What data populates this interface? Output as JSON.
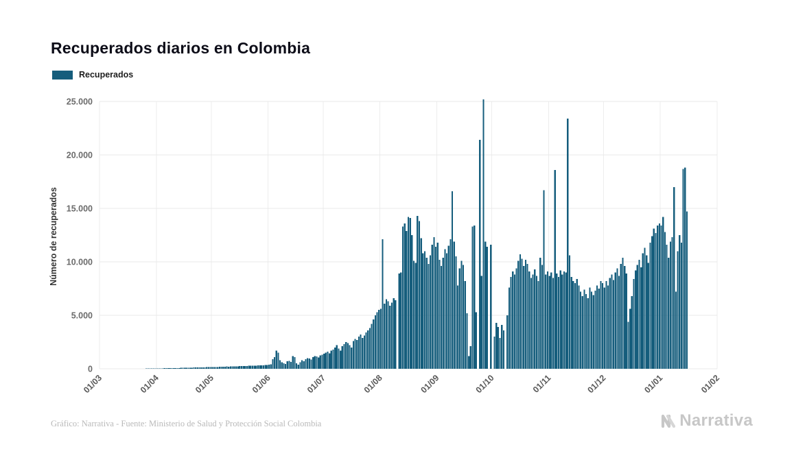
{
  "header": {
    "title": "Recuperados diarios en Colombia"
  },
  "legend": {
    "series_label": "Recuperados"
  },
  "footer": {
    "credit": "Gráfico: Narrativa - Fuente: Ministerio de Salud y Protección Social Colombia",
    "brand": "Narrativa"
  },
  "chart_data": {
    "type": "bar",
    "title": "Recuperados diarios en Colombia",
    "series_name": "Recuperados",
    "xlabel": "",
    "ylabel": "Número de recuperados",
    "ylim": [
      0,
      25000
    ],
    "grid": "horizontal-and-vertical-light",
    "legend_position": "top-left",
    "frequency": "daily",
    "start_date": "01/03",
    "total_days": 337,
    "colors": {
      "bar": "#155d7c",
      "grid": "#e8e8e8",
      "grid_vertical": "#ededed",
      "tick_text": "#6b6b6b"
    },
    "y_ticks": [
      {
        "value": 0,
        "label": "0"
      },
      {
        "value": 5000,
        "label": "5.000"
      },
      {
        "value": 10000,
        "label": "10.000"
      },
      {
        "value": 15000,
        "label": "15.000"
      },
      {
        "value": 20000,
        "label": "20.000"
      },
      {
        "value": 25000,
        "label": "25.000"
      }
    ],
    "x_ticks": [
      {
        "label": "01/03",
        "day": 0
      },
      {
        "label": "01/04",
        "day": 31
      },
      {
        "label": "01/05",
        "day": 61
      },
      {
        "label": "01/06",
        "day": 92
      },
      {
        "label": "01/07",
        "day": 122
      },
      {
        "label": "01/08",
        "day": 153
      },
      {
        "label": "01/09",
        "day": 184
      },
      {
        "label": "01/10",
        "day": 214
      },
      {
        "label": "01/11",
        "day": 245
      },
      {
        "label": "01/12",
        "day": 275
      },
      {
        "label": "01/01",
        "day": 306
      },
      {
        "label": "01/02",
        "day": 337
      }
    ],
    "values": [
      0,
      0,
      0,
      0,
      0,
      0,
      0,
      1,
      1,
      0,
      2,
      1,
      3,
      2,
      4,
      3,
      5,
      6,
      4,
      8,
      10,
      9,
      12,
      15,
      14,
      18,
      20,
      22,
      25,
      28,
      30,
      35,
      40,
      45,
      42,
      50,
      55,
      60,
      52,
      65,
      70,
      75,
      68,
      80,
      85,
      90,
      95,
      88,
      100,
      110,
      105,
      115,
      120,
      125,
      118,
      130,
      140,
      135,
      145,
      150,
      148,
      155,
      160,
      170,
      165,
      180,
      190,
      185,
      200,
      210,
      205,
      220,
      215,
      230,
      240,
      235,
      250,
      245,
      260,
      270,
      265,
      280,
      275,
      290,
      300,
      295,
      310,
      305,
      320,
      330,
      340,
      350,
      380,
      420,
      900,
      1100,
      1700,
      1500,
      800,
      600,
      500,
      450,
      700,
      750,
      650,
      1200,
      1100,
      500,
      400,
      600,
      800,
      700,
      900,
      1000,
      950,
      850,
      1100,
      1200,
      1150,
      1050,
      1250,
      1300,
      1400,
      1500,
      1600,
      1450,
      1700,
      1800,
      2000,
      2200,
      1900,
      1700,
      2100,
      2300,
      2500,
      2400,
      2200,
      2000,
      2600,
      2800,
      2700,
      3000,
      3200,
      2900,
      3100,
      3400,
      3600,
      3800,
      4200,
      4600,
      5000,
      5300,
      5500,
      5600,
      12100,
      6100,
      6500,
      6300,
      5900,
      6200,
      6600,
      6400,
      0,
      8900,
      9000,
      13300,
      13600,
      12900,
      14200,
      14100,
      12500,
      10100,
      9900,
      14300,
      13800,
      12200,
      10800,
      11000,
      10400,
      9800,
      10600,
      11600,
      12300,
      11400,
      11800,
      10200,
      9600,
      10400,
      11200,
      10800,
      11500,
      12100,
      16600,
      11900,
      10500,
      7800,
      9400,
      10100,
      9700,
      8200,
      5200,
      1200,
      2100,
      13300,
      13400,
      5300,
      0,
      21400,
      8700,
      25200,
      11900,
      11400,
      0,
      11600,
      0,
      3000,
      4300,
      3900,
      2900,
      4100,
      3600,
      0,
      5000,
      7600,
      8600,
      9100,
      8800,
      9400,
      10100,
      10700,
      10300,
      9600,
      10200,
      9800,
      9100,
      8500,
      8800,
      9300,
      8700,
      8200,
      10400,
      9700,
      16700,
      8800,
      9100,
      8700,
      9000,
      8500,
      18600,
      8900,
      8600,
      9200,
      8800,
      9100,
      9000,
      23400,
      10600,
      8600,
      8200,
      8000,
      8400,
      7800,
      7200,
      6800,
      7400,
      7000,
      6600,
      7600,
      7200,
      6900,
      7300,
      7800,
      7500,
      8200,
      8000,
      7600,
      8200,
      7800,
      8500,
      8800,
      8300,
      9000,
      9400,
      8700,
      9800,
      10400,
      9600,
      8900,
      4400,
      5600,
      6800,
      8400,
      9200,
      9700,
      10200,
      9500,
      10800,
      11300,
      10600,
      9900,
      11800,
      12400,
      13100,
      12700,
      13400,
      13600,
      13400,
      14200,
      12800,
      11600,
      10400,
      11900,
      12300,
      17000,
      7200,
      11000,
      12500,
      11800,
      18700,
      18800,
      14700
    ]
  }
}
